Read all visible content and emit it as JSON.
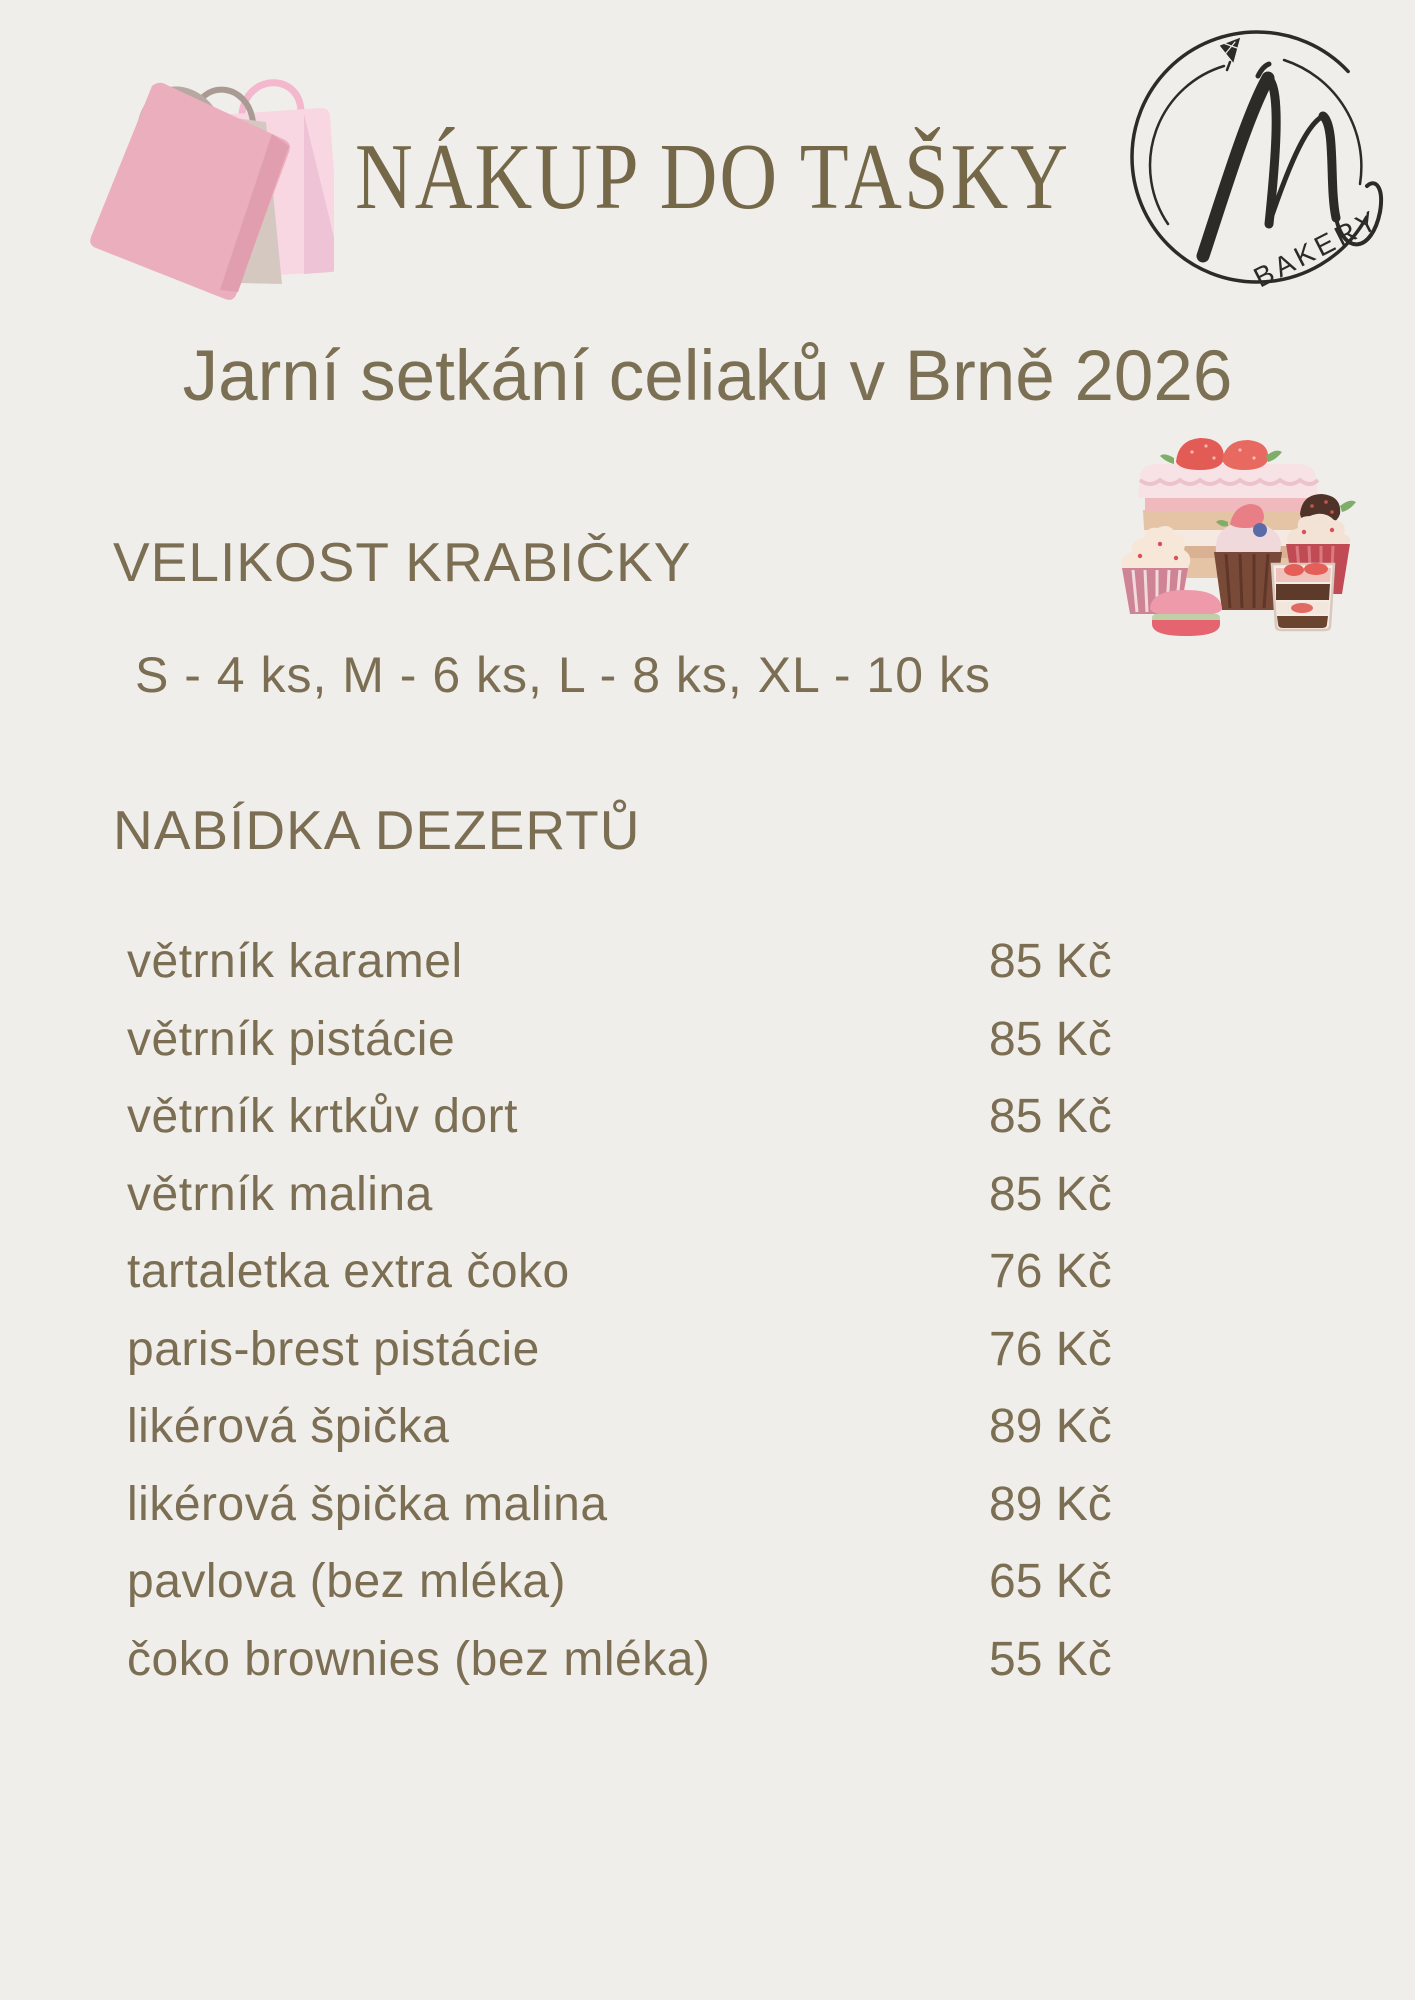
{
  "page": {
    "background": "#f0eeea",
    "accent_color": "#7b6e53",
    "logo_color": "#2d2b28"
  },
  "header": {
    "title": "NÁKUP DO TAŠKY",
    "logo": {
      "monogram": "m",
      "label": "BAKERY"
    }
  },
  "subtitle": "Jarní setkání celiaků v Brně 2026",
  "sections": {
    "box_size": {
      "heading": "VELIKOST KRABIČKY",
      "sizes_line": "S - 4 ks, M - 6 ks, L - 8 ks, XL - 10 ks"
    },
    "desserts": {
      "heading": "NABÍDKA DEZERTŮ",
      "items": [
        {
          "name": "větrník karamel",
          "price": "85 Kč"
        },
        {
          "name": "větrník pistácie",
          "price": "85 Kč"
        },
        {
          "name": "větrník krtkův dort",
          "price": "85 Kč"
        },
        {
          "name": "větrník malina",
          "price": "85 Kč"
        },
        {
          "name": "tartaletka extra čoko",
          "price": "76 Kč"
        },
        {
          "name": "paris-brest pistácie",
          "price": "76 Kč"
        },
        {
          "name": "likérová špička",
          "price": "89 Kč"
        },
        {
          "name": "likérová špička malina",
          "price": "89 Kč"
        },
        {
          "name": "pavlova (bez mléka)",
          "price": "65 Kč"
        },
        {
          "name": "čoko brownies (bez mléka)",
          "price": "55 Kč"
        }
      ]
    }
  }
}
